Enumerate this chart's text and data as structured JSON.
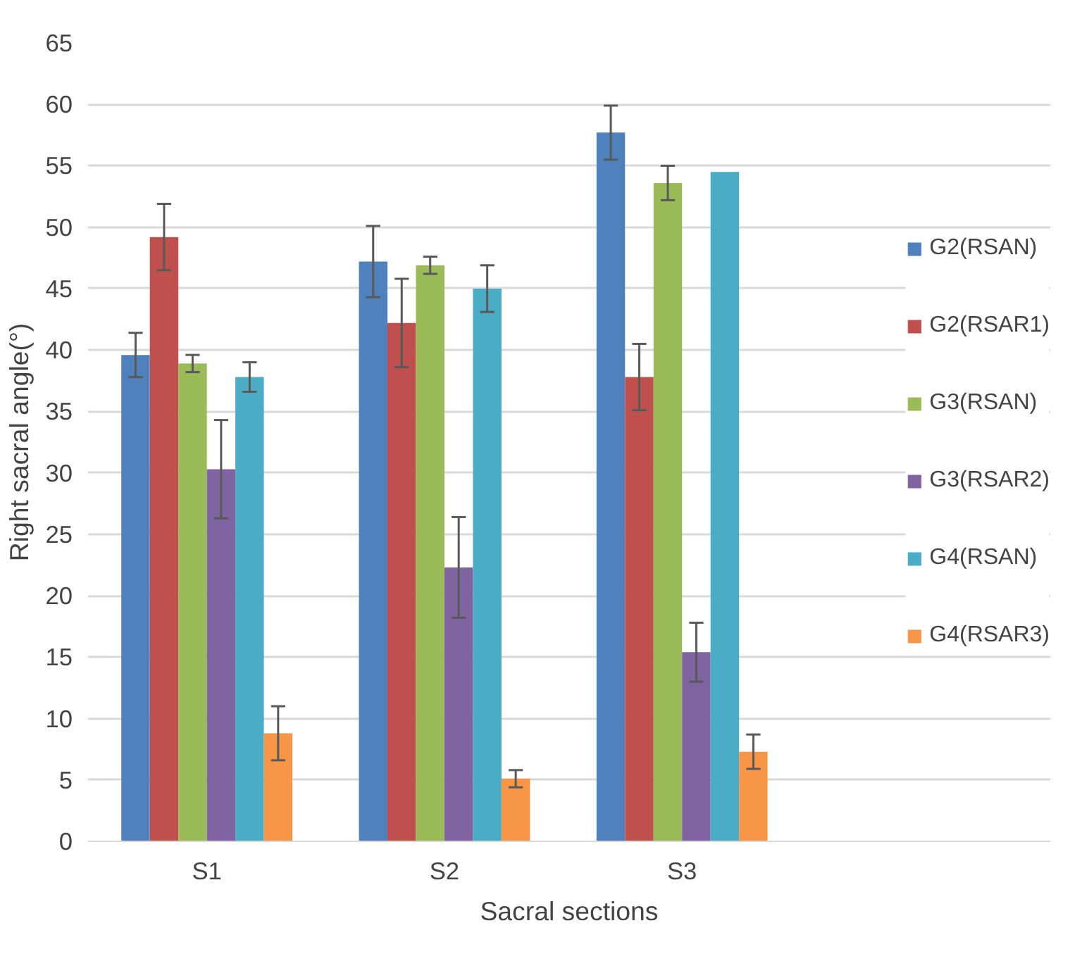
{
  "chart_data": {
    "type": "bar",
    "xlabel": "Sacral sections",
    "ylabel": "Right sacral angle(°)",
    "categories": [
      "S1",
      "S2",
      "S3"
    ],
    "series": [
      {
        "name": "G2(RSAN)",
        "color": "#4f81bd",
        "values": [
          39.6,
          47.2,
          57.7
        ],
        "errors": [
          1.8,
          2.9,
          2.2
        ]
      },
      {
        "name": "G2(RSAR1)",
        "color": "#c0504d",
        "values": [
          49.2,
          42.2,
          37.8
        ],
        "errors": [
          2.7,
          3.6,
          2.7
        ]
      },
      {
        "name": "G3(RSAN)",
        "color": "#9bbb59",
        "values": [
          38.9,
          46.9,
          53.6
        ],
        "errors": [
          0.7,
          0.7,
          1.4
        ]
      },
      {
        "name": "G3(RSAR2)",
        "color": "#8064a2",
        "values": [
          30.3,
          22.3,
          15.4
        ],
        "errors": [
          4.0,
          4.1,
          2.4
        ]
      },
      {
        "name": "G4(RSAN)",
        "color": "#4bacc6",
        "values": [
          37.8,
          45.0,
          54.5
        ],
        "errors": [
          1.2,
          1.9,
          null
        ]
      },
      {
        "name": "G4(RSAR3)",
        "color": "#f79646",
        "values": [
          8.8,
          5.1,
          7.3
        ],
        "errors": [
          2.2,
          0.7,
          1.4
        ]
      }
    ],
    "ylim": [
      0,
      65
    ],
    "yticks": [
      0,
      5,
      10,
      15,
      20,
      25,
      30,
      35,
      40,
      45,
      50,
      55,
      60,
      65
    ],
    "grid": "y",
    "legend": "right"
  }
}
